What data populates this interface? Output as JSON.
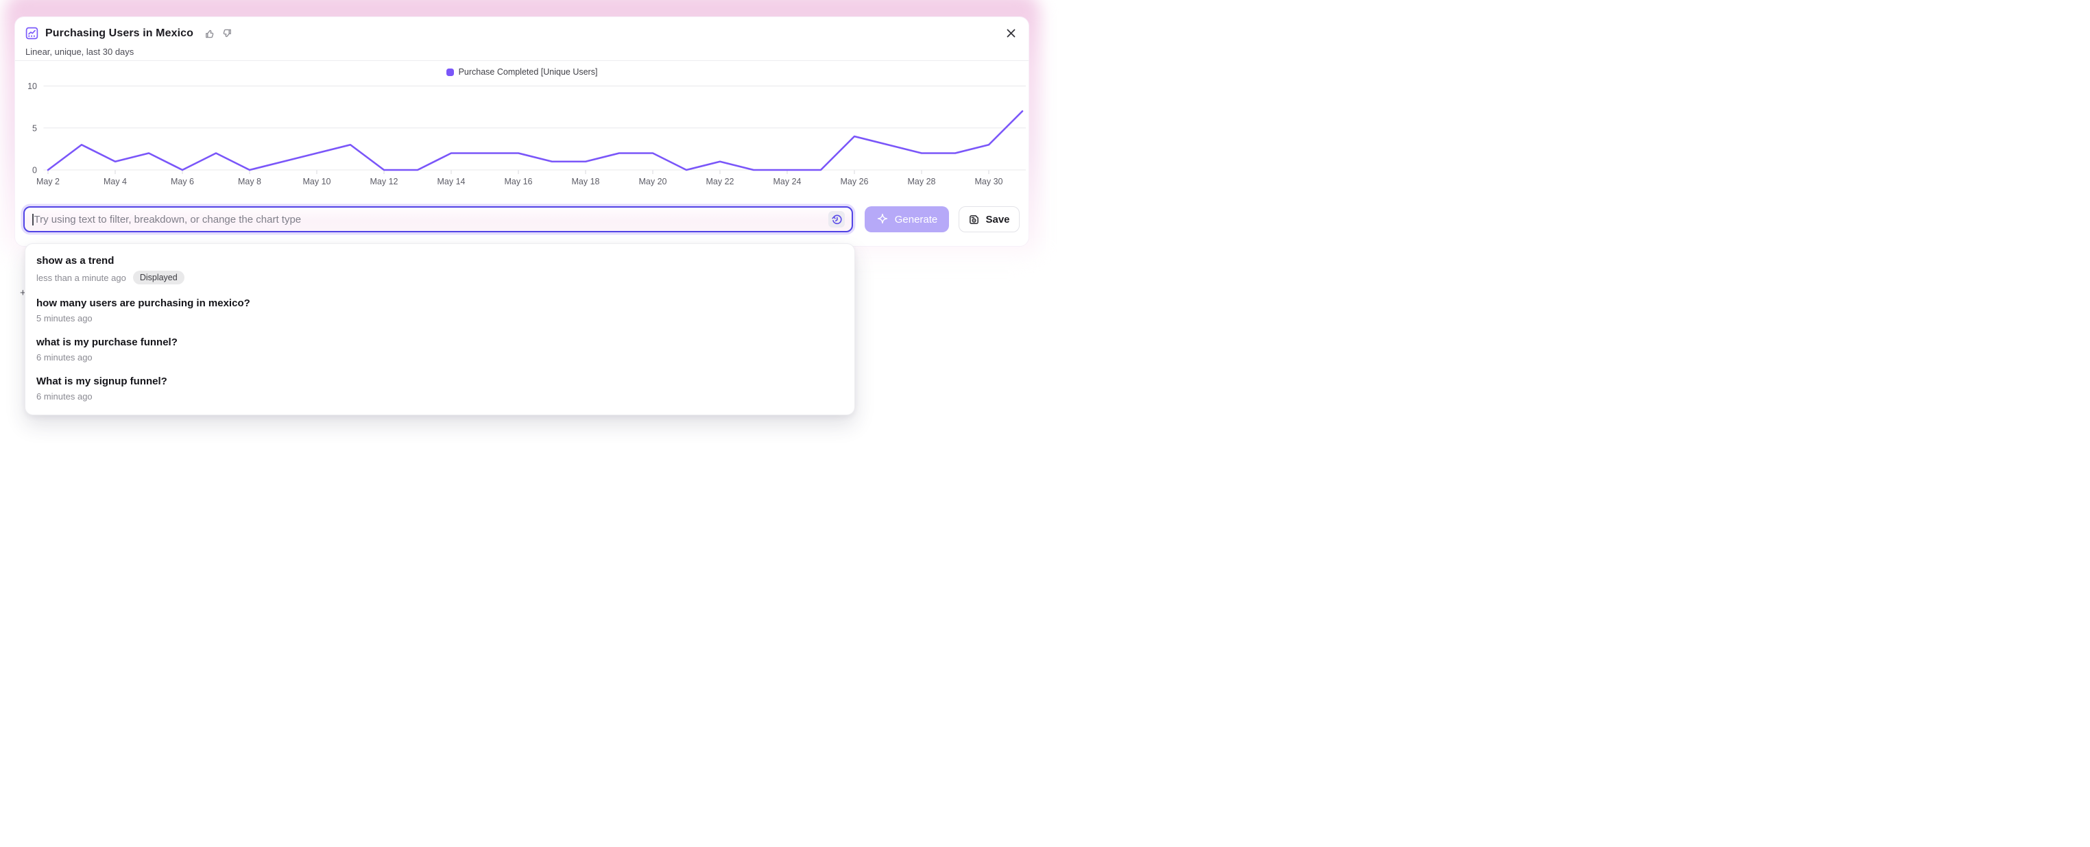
{
  "header": {
    "title": "Purchasing Users in Mexico",
    "subtitle": "Linear, unique, last 30 days"
  },
  "chart_data": {
    "type": "line",
    "title": "Purchasing Users in Mexico",
    "categories": [
      "May 2",
      "May 3",
      "May 4",
      "May 5",
      "May 6",
      "May 7",
      "May 8",
      "May 9",
      "May 10",
      "May 11",
      "May 12",
      "May 13",
      "May 14",
      "May 15",
      "May 16",
      "May 17",
      "May 18",
      "May 19",
      "May 20",
      "May 21",
      "May 22",
      "May 23",
      "May 24",
      "May 25",
      "May 26",
      "May 27",
      "May 28",
      "May 29",
      "May 30",
      "May 31"
    ],
    "series": [
      {
        "name": "Purchase Completed [Unique Users]",
        "color": "#7a56f9",
        "values": [
          0,
          3,
          1,
          2,
          0,
          2,
          0,
          1,
          2,
          3,
          0,
          0,
          2,
          2,
          2,
          1,
          1,
          2,
          2,
          0,
          1,
          0,
          0,
          0,
          4,
          3,
          2,
          2,
          3,
          7
        ]
      }
    ],
    "x_tick_labels": [
      "May 2",
      "May 4",
      "May 6",
      "May 8",
      "May 10",
      "May 12",
      "May 14",
      "May 16",
      "May 18",
      "May 20",
      "May 22",
      "May 24",
      "May 26",
      "May 28",
      "May 30"
    ],
    "y_ticks": [
      0,
      5,
      10
    ],
    "ylim": [
      0,
      10
    ],
    "grid": "horizontal",
    "legend_position": "top-center",
    "colors": {
      "grid_line": "#e8e8eb",
      "tick_mark": "#d9d9de",
      "axis_label": "#5c5c66"
    }
  },
  "prompt_bar": {
    "placeholder": "Try using text to filter, breakdown, or change the chart type",
    "generate_label": "Generate",
    "save_label": "Save"
  },
  "history_dropdown": {
    "items": [
      {
        "title": "show as a trend",
        "time": "less than a minute ago",
        "badge": "Displayed"
      },
      {
        "title": "how many users are purchasing in mexico?",
        "time": "5 minutes ago"
      },
      {
        "title": "what is my purchase funnel?",
        "time": "6 minutes ago"
      },
      {
        "title": "What is my signup funnel?",
        "time": "6 minutes ago"
      }
    ]
  },
  "misc": {
    "plus_glyph": "+"
  }
}
